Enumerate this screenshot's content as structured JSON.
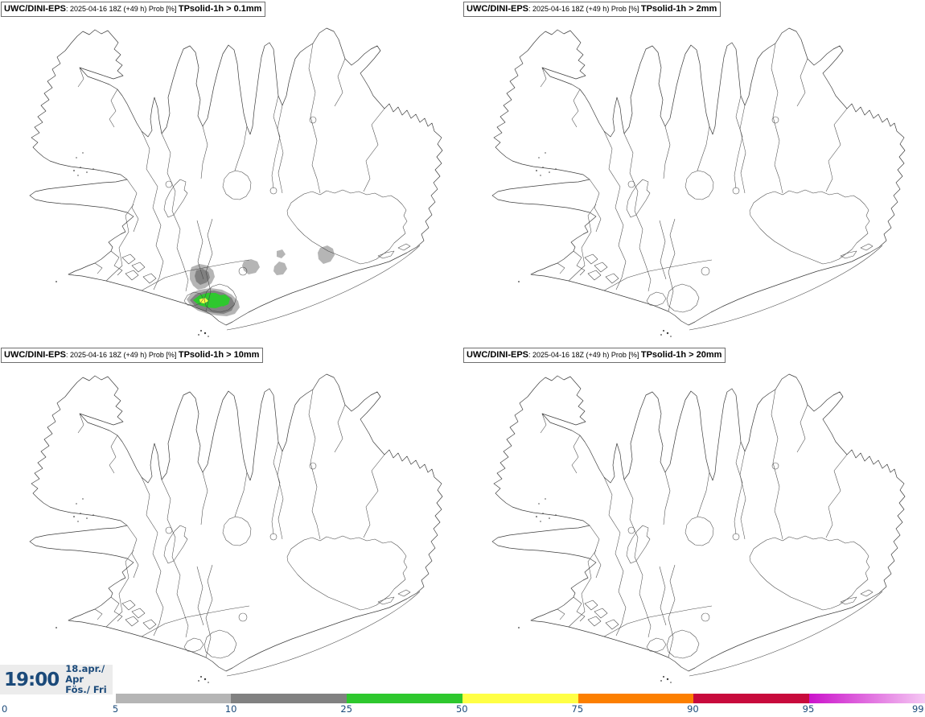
{
  "panels": [
    {
      "model": "UWC/DINI-EPS",
      "run": ": 2025-04-16 18Z (+49 h) Prob [%] ",
      "variable": "TPsolid-1h > 0.1mm"
    },
    {
      "model": "UWC/DINI-EPS",
      "run": ": 2025-04-16 18Z (+49 h) Prob [%] ",
      "variable": "TPsolid-1h > 2mm"
    },
    {
      "model": "UWC/DINI-EPS",
      "run": ": 2025-04-16 18Z (+49 h) Prob [%] ",
      "variable": "TPsolid-1h > 10mm"
    },
    {
      "model": "UWC/DINI-EPS",
      "run": ": 2025-04-16 18Z (+49 h) Prob [%] ",
      "variable": "TPsolid-1h > 20mm"
    }
  ],
  "footer": {
    "time": "19:00",
    "date_line1": "18.apr./ Apr",
    "date_line2": "Fös./ Fri",
    "text_color": "#1b4a7a",
    "box_color": "#ececec"
  },
  "colorbar": {
    "ticks": [
      "0",
      "5",
      "10",
      "25",
      "50",
      "75",
      "90",
      "95",
      "99"
    ],
    "segments": [
      {
        "range": "5-10",
        "color": "#b5b5b5"
      },
      {
        "range": "10-25",
        "color": "#818181"
      },
      {
        "range": "25-50",
        "color": "#2ec82e"
      },
      {
        "range": "50-75",
        "color": "#ffff45"
      },
      {
        "range": "75-90",
        "color": "#fc7f00"
      },
      {
        "range": "90-95",
        "color": "#c80a3c"
      },
      {
        "range": "95-99",
        "color": "#cb13cb",
        "color_end": "#f5c8f3"
      }
    ],
    "label_color": "#1b4a7a"
  },
  "map_overlay_panel1": {
    "region": "South Iceland (Eyjafjallajökull / Mýrdalsjökull area)",
    "patches": [
      {
        "probability": "5-10 %",
        "color": "#b5b5b5"
      },
      {
        "probability": "10-25 %",
        "color": "#818181"
      },
      {
        "probability": "25-50 %",
        "color": "#2ec82e"
      },
      {
        "probability": "50-75 %",
        "color": "#ffff45"
      }
    ]
  }
}
